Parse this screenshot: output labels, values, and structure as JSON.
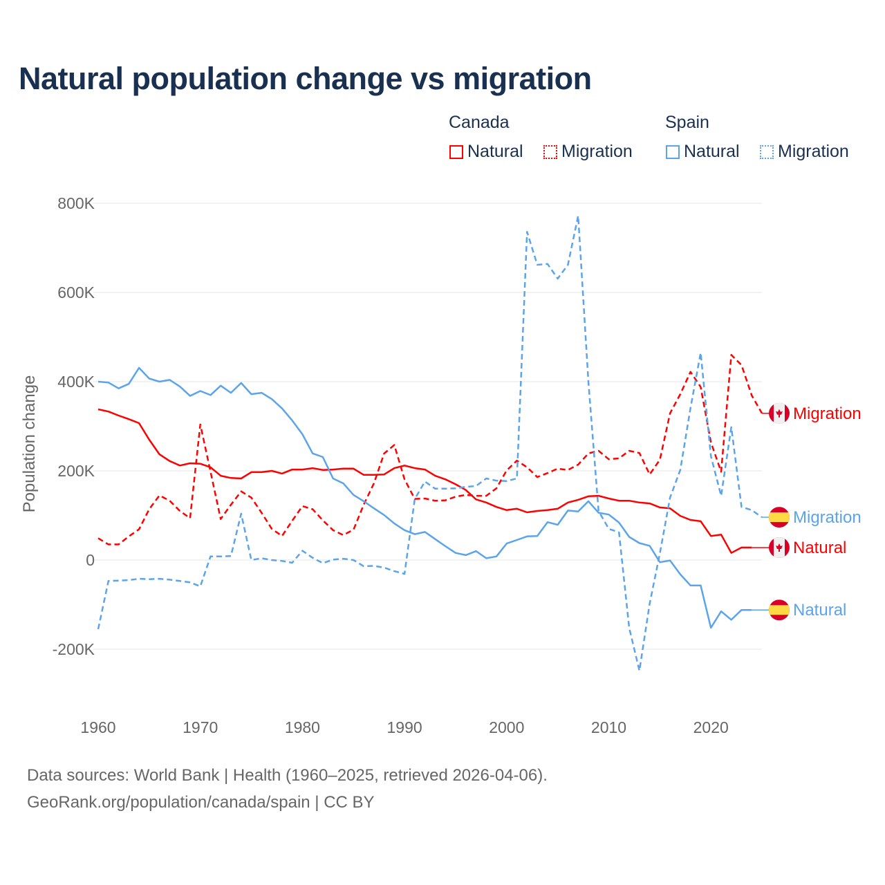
{
  "title": "Natural population change vs migration",
  "legend": {
    "groups": [
      {
        "name": "Canada",
        "items": [
          "Natural",
          "Migration"
        ]
      },
      {
        "name": "Spain",
        "items": [
          "Natural",
          "Migration"
        ]
      }
    ]
  },
  "colors": {
    "canada": "#ff0000",
    "spain": "#5ba4ea",
    "title": "#1a3050",
    "grid": "#e6e6e6",
    "axis_text": "#666666"
  },
  "footer": {
    "line1": "Data sources: World Bank | Health (1960–2025, retrieved 2026-04-06).",
    "line2": "GeoRank.org/population/canada/spain | CC BY"
  },
  "chart_data": {
    "type": "line",
    "title": "Natural population change vs migration",
    "xlabel": "",
    "ylabel": "Population change",
    "xlim": [
      1960,
      2025
    ],
    "ylim": [
      -300000,
      800000
    ],
    "grid": true,
    "legend_position": "top-right",
    "xticks": [
      {
        "value": 1960,
        "label": "1960"
      },
      {
        "value": 1970,
        "label": "1970"
      },
      {
        "value": 1980,
        "label": "1980"
      },
      {
        "value": 1990,
        "label": "1990"
      },
      {
        "value": 2000,
        "label": "2000"
      },
      {
        "value": 2010,
        "label": "2010"
      },
      {
        "value": 2020,
        "label": "2020"
      }
    ],
    "yticks": [
      {
        "value": 800000,
        "label": "800K"
      },
      {
        "value": 600000,
        "label": "600K"
      },
      {
        "value": 400000,
        "label": "400K"
      },
      {
        "value": 200000,
        "label": "200K"
      },
      {
        "value": 0,
        "label": "0"
      },
      {
        "value": -200000,
        "label": "-200K"
      }
    ],
    "series": [
      {
        "id": "canada-natural",
        "country": "Canada",
        "name": "Natural",
        "color": "#ff0000",
        "dash": false,
        "start": 1960,
        "values": [
          338,
          333,
          324,
          316,
          307,
          270,
          237,
          222,
          212,
          217,
          216,
          208,
          189,
          184,
          183,
          197,
          197,
          200,
          194,
          203,
          203,
          206,
          202,
          203,
          205,
          205,
          191,
          191,
          192,
          206,
          212,
          206,
          203,
          189,
          181,
          170,
          157,
          136,
          129,
          119,
          112,
          115,
          107,
          110,
          112,
          115,
          129,
          135,
          143,
          144,
          138,
          133,
          133,
          129,
          127,
          118,
          116,
          99,
          90,
          87,
          54,
          57,
          16,
          28,
          28
        ]
      },
      {
        "id": "canada-migration",
        "country": "Canada",
        "name": "Migration",
        "color": "#ff0000",
        "dash": true,
        "start": 1960,
        "values": [
          49,
          35,
          35,
          53,
          69,
          114,
          145,
          133,
          110,
          94,
          304,
          198,
          92,
          124,
          154,
          140,
          106,
          70,
          54,
          88,
          121,
          114,
          89,
          67,
          56,
          68,
          124,
          172,
          239,
          258,
          181,
          137,
          138,
          133,
          134,
          142,
          146,
          144,
          144,
          161,
          201,
          223,
          208,
          186,
          195,
          205,
          202,
          214,
          239,
          245,
          226,
          228,
          245,
          240,
          192,
          225,
          329,
          372,
          422,
          388,
          264,
          198,
          460,
          437,
          369,
          329
        ]
      },
      {
        "id": "spain-natural",
        "country": "Spain",
        "name": "Natural",
        "color": "#5ba4ea",
        "dash": false,
        "start": 1960,
        "values": [
          400,
          398,
          385,
          395,
          431,
          407,
          400,
          404,
          389,
          368,
          379,
          370,
          391,
          375,
          397,
          372,
          375,
          361,
          340,
          313,
          282,
          239,
          231,
          183,
          172,
          146,
          132,
          116,
          101,
          82,
          67,
          58,
          63,
          47,
          31,
          16,
          11,
          20,
          4,
          8,
          37,
          45,
          53,
          54,
          85,
          79,
          111,
          109,
          132,
          106,
          102,
          84,
          52,
          38,
          32,
          -5,
          -1,
          -32,
          -57,
          -57,
          -152,
          -115,
          -134,
          -112,
          -112
        ]
      },
      {
        "id": "spain-migration",
        "country": "Spain",
        "name": "Migration",
        "color": "#5ba4ea",
        "dash": true,
        "start": 1960,
        "values": [
          -155,
          -47,
          -46,
          -45,
          -42,
          -43,
          -42,
          -44,
          -47,
          -50,
          -59,
          8,
          8,
          9,
          104,
          0,
          4,
          0,
          -2,
          -6,
          21,
          5,
          -7,
          1,
          3,
          0,
          -14,
          -13,
          -17,
          -25,
          -31,
          137,
          176,
          160,
          160,
          161,
          164,
          166,
          183,
          178,
          177,
          183,
          736,
          662,
          664,
          631,
          662,
          772,
          400,
          110,
          70,
          62,
          -152,
          -248,
          -98,
          15,
          140,
          202,
          341,
          465,
          233,
          144,
          298,
          119,
          112,
          96
        ]
      }
    ],
    "value_unit": "thousands",
    "end_labels": [
      {
        "series": "canada-migration",
        "label": "Migration",
        "flag": "canada-flag"
      },
      {
        "series": "spain-migration",
        "label": "Migration",
        "flag": "spain-flag"
      },
      {
        "series": "canada-natural",
        "label": "Natural",
        "flag": "canada-flag"
      },
      {
        "series": "spain-natural",
        "label": "Natural",
        "flag": "spain-flag"
      }
    ]
  }
}
